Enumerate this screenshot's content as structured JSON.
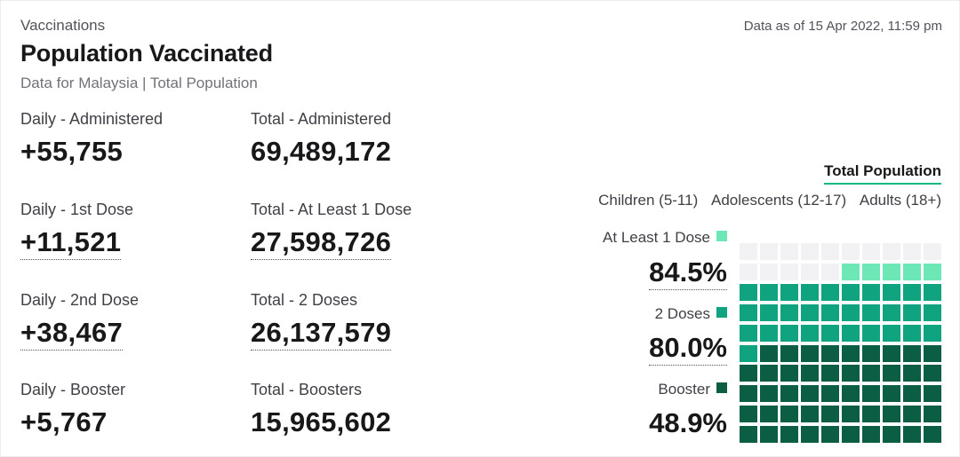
{
  "header": {
    "breadcrumb": "Vaccinations",
    "title": "Population Vaccinated",
    "subtitle": "Data for Malaysia | Total Population",
    "as_of": "Data as of 15 Apr 2022, 11:59 pm"
  },
  "stats": {
    "daily_administered": {
      "label": "Daily - Administered",
      "value": "+55,755"
    },
    "total_administered": {
      "label": "Total - Administered",
      "value": "69,489,172"
    },
    "daily_1st": {
      "label": "Daily - 1st Dose",
      "value": "+11,521"
    },
    "total_1st": {
      "label": "Total - At Least 1 Dose",
      "value": "27,598,726"
    },
    "daily_2nd": {
      "label": "Daily - 2nd Dose",
      "value": "+38,467"
    },
    "total_2nd": {
      "label": "Total - 2 Doses",
      "value": "26,137,579"
    },
    "daily_booster": {
      "label": "Daily - Booster",
      "value": "+5,767"
    },
    "total_booster": {
      "label": "Total - Boosters",
      "value": "15,965,602"
    }
  },
  "population_tabs": {
    "active": "Total Population",
    "filters": [
      "Children (5-11)",
      "Adolescents (12-17)",
      "Adults (18+)"
    ]
  },
  "legend": {
    "at_least_1": {
      "label": "At Least 1 Dose",
      "pct": "84.5%",
      "color": "#6ee7b7"
    },
    "two_doses": {
      "label": "2 Doses",
      "pct": "80.0%",
      "color": "#10a37f"
    },
    "booster": {
      "label": "Booster",
      "pct": "48.9%",
      "color": "#0b5e44"
    }
  },
  "chart_data": {
    "type": "waffle",
    "columns": 10,
    "rows": 10,
    "series": [
      {
        "name": "At Least 1 Dose",
        "value": 84.5,
        "color": "#6ee7b7"
      },
      {
        "name": "2 Doses",
        "value": 80.0,
        "color": "#10a37f"
      },
      {
        "name": "Booster",
        "value": 48.9,
        "color": "#0b5e44"
      }
    ],
    "empty_color": "#f2f2f4"
  }
}
